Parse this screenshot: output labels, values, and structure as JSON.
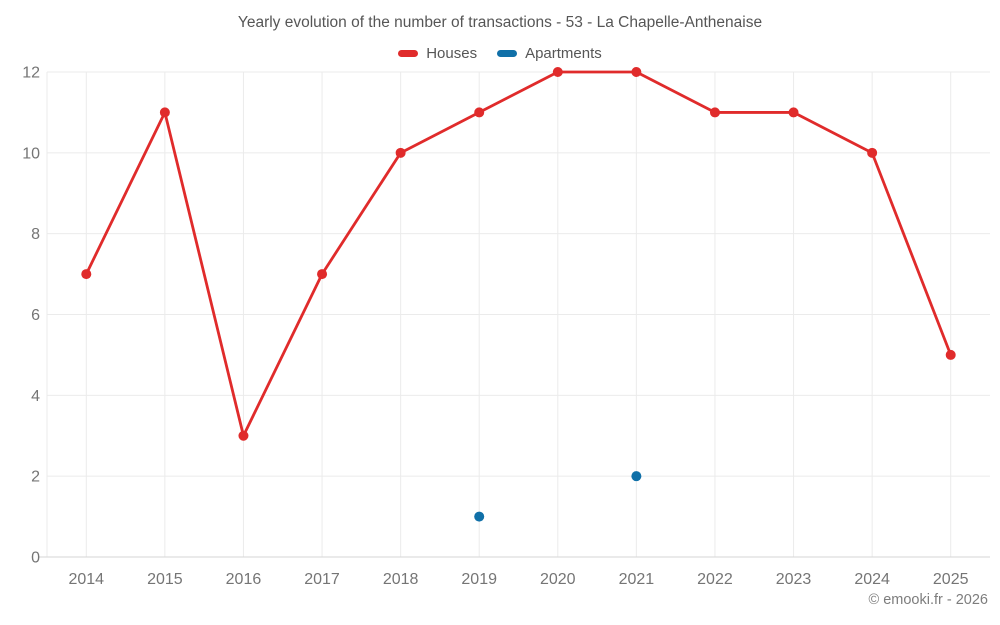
{
  "header": {
    "title": "Yearly evolution of the number of transactions - 53 - La Chapelle-Anthenaise"
  },
  "footer": {
    "credit": "© emooki.fr - 2026"
  },
  "chart_data": {
    "type": "line",
    "title": "Yearly evolution of the number of transactions - 53 - La Chapelle-Anthenaise",
    "categories": [
      "2014",
      "2015",
      "2016",
      "2017",
      "2018",
      "2019",
      "2020",
      "2021",
      "2022",
      "2023",
      "2024",
      "2025"
    ],
    "series": [
      {
        "name": "Houses",
        "type": "line",
        "color": "#e02b2b",
        "values": [
          7,
          11,
          3,
          7,
          10,
          11,
          12,
          12,
          11,
          11,
          10,
          5
        ]
      },
      {
        "name": "Apartments",
        "type": "scatter",
        "color": "#1070a8",
        "values": [
          null,
          null,
          null,
          null,
          null,
          1,
          null,
          2,
          null,
          null,
          null,
          null
        ]
      }
    ],
    "xlabel": "",
    "ylabel": "",
    "ylim": [
      0,
      12
    ],
    "ytick_step": 2,
    "grid": true,
    "legend_position": "top",
    "styles": {
      "grid_color": "#ebebeb",
      "axis_color": "#d6d6d6",
      "tick_label_color": "#757575",
      "tick_font_size": 16,
      "line_width": 2.8,
      "marker_radius": 5,
      "background": "#ffffff"
    }
  }
}
